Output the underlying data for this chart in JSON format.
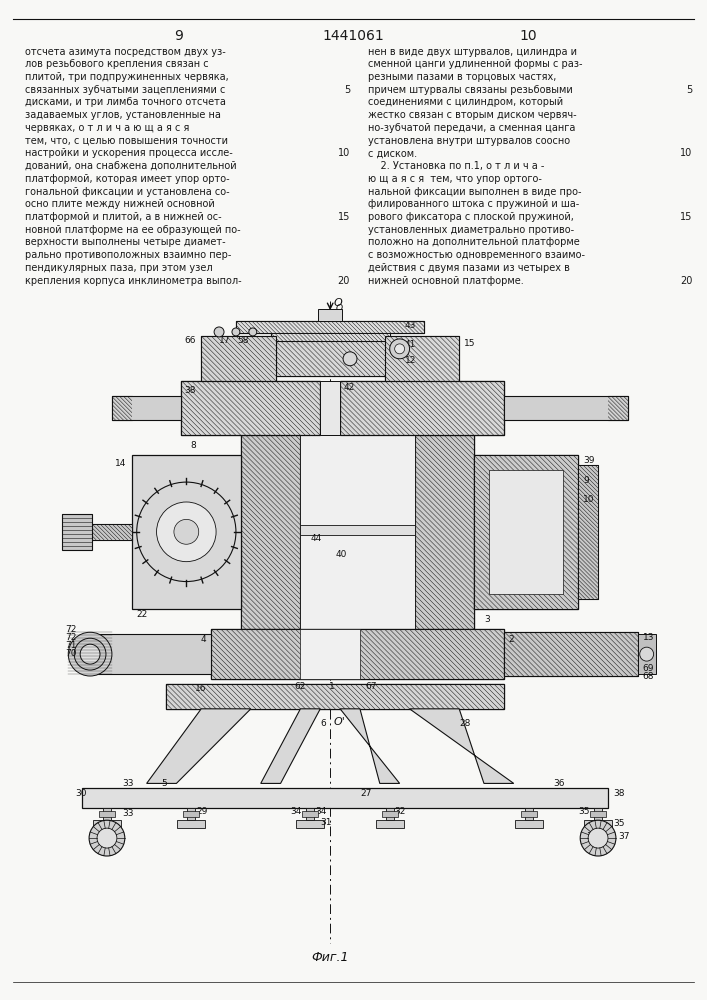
{
  "page_numbers_left": "9",
  "patent_number": "1441061",
  "page_numbers_right": "10",
  "figure_label": "Фиг.1",
  "background_color": "#f8f8f6",
  "text_color": "#1a1a1a",
  "left_column_text": [
    "отсчета азимута посредством двух уз-",
    "лов резьбового крепления связан с",
    "плитой, три подпружиненных червяка,",
    "связанных зубчатыми зацеплениями с",
    "дисками, и три лимба точного отсчета",
    "задаваемых углов, установленные на",
    "червяках, о т л и ч а ю щ а я с я",
    "тем, что, с целью повышения точности",
    "настройки и ускорения процесса иссле-",
    "дований, она снабжена дополнительной",
    "платформой, которая имеет упор орто-",
    "гональной фиксации и установлена со-",
    "осно плите между нижней основной",
    "платформой и плитой, а в нижней ос-",
    "новной платформе на ее образующей по-",
    "верхности выполнены четыре диамет-",
    "рально противоположных взаимно пер-",
    "пендикулярных паза, при этом узел",
    "крепления корпуса инклинометра выпол-"
  ],
  "right_column_text": [
    "нен в виде двух штурвалов, цилиндра и",
    "сменной цанги удлиненной формы с раз-",
    "резными пазами в торцовых частях,",
    "причем штурвалы связаны резьбовыми",
    "соединениями с цилиндром, который",
    "жестко связан с вторым диском червяч-",
    "но-зубчатой передачи, а сменная цанга",
    "установлена внутри штурвалов соосно",
    "с диском.",
    "    2. Установка по п.1, о т л и ч а -",
    "ю щ а я с я  тем, что упор ортого-",
    "нальной фиксации выполнен в виде про-",
    "филированного штока с пружиной и ша-",
    "рового фиксатора с плоской пружиной,",
    "установленных диаметрально противо-",
    "положно на дополнительной платформе",
    "с возможностью одновременного взаимо-",
    "действия с двумя пазами из четырех в",
    "нижней основной платформе."
  ]
}
